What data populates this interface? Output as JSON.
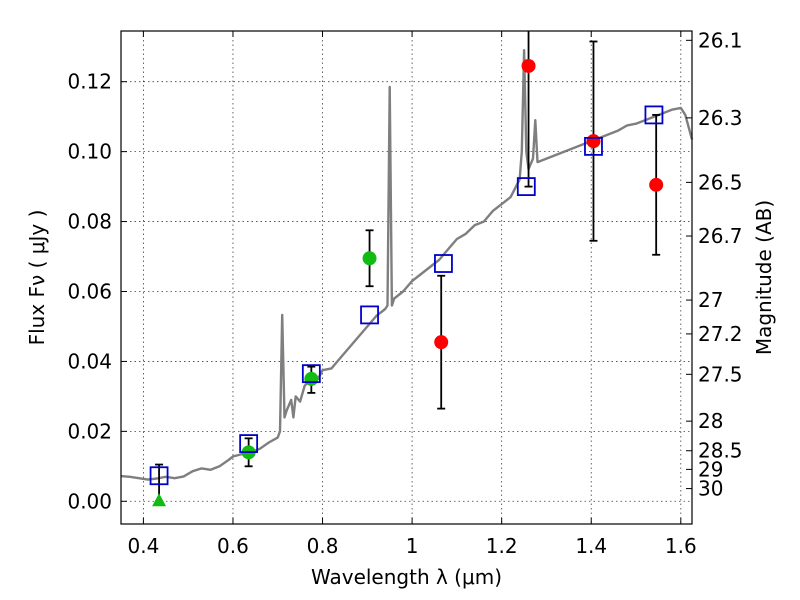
{
  "chart_data": {
    "type": "scatter",
    "xlabel": "Wavelength  λ (μm)",
    "ylabel": "Flux  Fν  ( μJy )",
    "ylabel_right": "Magnitude (AB)",
    "xlim": [
      0.35,
      1.625
    ],
    "ylim": [
      -0.0065,
      0.1345
    ],
    "grid": true,
    "x_ticks": [
      {
        "value": 0.4,
        "label": "0.4"
      },
      {
        "value": 0.6,
        "label": "0.6"
      },
      {
        "value": 0.8,
        "label": "0.8"
      },
      {
        "value": 1.0,
        "label": "1"
      },
      {
        "value": 1.2,
        "label": "1.2"
      },
      {
        "value": 1.4,
        "label": "1.4"
      },
      {
        "value": 1.6,
        "label": "1.6"
      }
    ],
    "y_ticks": [
      {
        "value": 0.0,
        "label": "0.00"
      },
      {
        "value": 0.02,
        "label": "0.02"
      },
      {
        "value": 0.04,
        "label": "0.04"
      },
      {
        "value": 0.06,
        "label": "0.06"
      },
      {
        "value": 0.08,
        "label": "0.08"
      },
      {
        "value": 0.1,
        "label": "0.10"
      },
      {
        "value": 0.12,
        "label": "0.12"
      }
    ],
    "mag_ticks": [
      {
        "value": 26.1,
        "label": "26.1"
      },
      {
        "value": 26.3,
        "label": "26.3"
      },
      {
        "value": 26.5,
        "label": "26.5"
      },
      {
        "value": 26.7,
        "label": "26.7"
      },
      {
        "value": 27.0,
        "label": "27"
      },
      {
        "value": 27.2,
        "label": "27.2"
      },
      {
        "value": 27.5,
        "label": "27.5"
      },
      {
        "value": 28.0,
        "label": "28"
      },
      {
        "value": 28.5,
        "label": "28.5"
      },
      {
        "value": 29.0,
        "label": "29"
      },
      {
        "value": 30.0,
        "label": "30"
      }
    ],
    "colors": {
      "sed": "#7f7f7f",
      "model": "#0000cc",
      "detection": "#11bb11",
      "upper_limit": "#11bb11",
      "alt_detection": "#ff0000",
      "errorbar": "#000000"
    },
    "sed_curve": [
      [
        0.35,
        0.0072
      ],
      [
        0.37,
        0.007
      ],
      [
        0.39,
        0.0066
      ],
      [
        0.41,
        0.0062
      ],
      [
        0.43,
        0.0065
      ],
      [
        0.45,
        0.007
      ],
      [
        0.47,
        0.0066
      ],
      [
        0.49,
        0.0071
      ],
      [
        0.51,
        0.0086
      ],
      [
        0.53,
        0.0094
      ],
      [
        0.55,
        0.009
      ],
      [
        0.57,
        0.01
      ],
      [
        0.59,
        0.0118
      ],
      [
        0.6,
        0.0128
      ],
      [
        0.62,
        0.0135
      ],
      [
        0.64,
        0.014
      ],
      [
        0.66,
        0.015
      ],
      [
        0.68,
        0.0168
      ],
      [
        0.7,
        0.0182
      ],
      [
        0.705,
        0.02
      ],
      [
        0.71,
        0.0533
      ],
      [
        0.715,
        0.024
      ],
      [
        0.72,
        0.026
      ],
      [
        0.73,
        0.029
      ],
      [
        0.735,
        0.024
      ],
      [
        0.74,
        0.03
      ],
      [
        0.75,
        0.0285
      ],
      [
        0.76,
        0.033
      ],
      [
        0.77,
        0.0345
      ],
      [
        0.78,
        0.036
      ],
      [
        0.79,
        0.035
      ],
      [
        0.8,
        0.0375
      ],
      [
        0.82,
        0.038
      ],
      [
        0.84,
        0.041
      ],
      [
        0.86,
        0.044
      ],
      [
        0.88,
        0.047
      ],
      [
        0.9,
        0.05
      ],
      [
        0.92,
        0.053
      ],
      [
        0.94,
        0.055
      ],
      [
        0.945,
        0.056
      ],
      [
        0.95,
        0.1185
      ],
      [
        0.955,
        0.056
      ],
      [
        0.96,
        0.058
      ],
      [
        0.98,
        0.06
      ],
      [
        1.0,
        0.063
      ],
      [
        1.02,
        0.065
      ],
      [
        1.04,
        0.067
      ],
      [
        1.06,
        0.069
      ],
      [
        1.08,
        0.072
      ],
      [
        1.1,
        0.075
      ],
      [
        1.12,
        0.0765
      ],
      [
        1.14,
        0.079
      ],
      [
        1.16,
        0.08
      ],
      [
        1.18,
        0.083
      ],
      [
        1.2,
        0.085
      ],
      [
        1.22,
        0.087
      ],
      [
        1.24,
        0.092
      ],
      [
        1.245,
        0.1
      ],
      [
        1.25,
        0.129
      ],
      [
        1.255,
        0.1
      ],
      [
        1.26,
        0.095
      ],
      [
        1.27,
        0.098
      ],
      [
        1.275,
        0.109
      ],
      [
        1.28,
        0.097
      ],
      [
        1.3,
        0.098
      ],
      [
        1.32,
        0.099
      ],
      [
        1.34,
        0.1
      ],
      [
        1.36,
        0.101
      ],
      [
        1.38,
        0.102
      ],
      [
        1.4,
        0.103
      ],
      [
        1.42,
        0.104
      ],
      [
        1.44,
        0.105
      ],
      [
        1.46,
        0.106
      ],
      [
        1.48,
        0.1075
      ],
      [
        1.5,
        0.108
      ],
      [
        1.52,
        0.109
      ],
      [
        1.54,
        0.11
      ],
      [
        1.56,
        0.111
      ],
      [
        1.58,
        0.112
      ],
      [
        1.6,
        0.1125
      ],
      [
        1.61,
        0.1105
      ],
      [
        1.625,
        0.1035
      ]
    ],
    "model_points": [
      {
        "x": 0.435,
        "y": 0.0073
      },
      {
        "x": 0.635,
        "y": 0.0165
      },
      {
        "x": 0.775,
        "y": 0.0365
      },
      {
        "x": 0.905,
        "y": 0.0533
      },
      {
        "x": 1.07,
        "y": 0.068
      },
      {
        "x": 1.255,
        "y": 0.09
      },
      {
        "x": 1.405,
        "y": 0.1015
      },
      {
        "x": 1.54,
        "y": 0.1105
      }
    ],
    "detections": [
      {
        "x": 0.635,
        "y": 0.014,
        "ylo": 0.01,
        "yhi": 0.018
      },
      {
        "x": 0.775,
        "y": 0.035,
        "ylo": 0.031,
        "yhi": 0.0385
      },
      {
        "x": 0.905,
        "y": 0.0695,
        "ylo": 0.0615,
        "yhi": 0.0775
      }
    ],
    "upper_limits": [
      {
        "x": 0.435,
        "y": 0.0,
        "ylo": 0.0,
        "yhi": 0.0105
      }
    ],
    "alt_detections": [
      {
        "x": 1.065,
        "y": 0.0455,
        "ylo": 0.0265,
        "yhi": 0.0645
      },
      {
        "x": 1.26,
        "y": 0.1245,
        "ylo": 0.09,
        "yhi": 0.1345
      },
      {
        "x": 1.405,
        "y": 0.103,
        "ylo": 0.0745,
        "yhi": 0.1315
      },
      {
        "x": 1.545,
        "y": 0.0905,
        "ylo": 0.0705,
        "yhi": 0.1105
      }
    ]
  }
}
